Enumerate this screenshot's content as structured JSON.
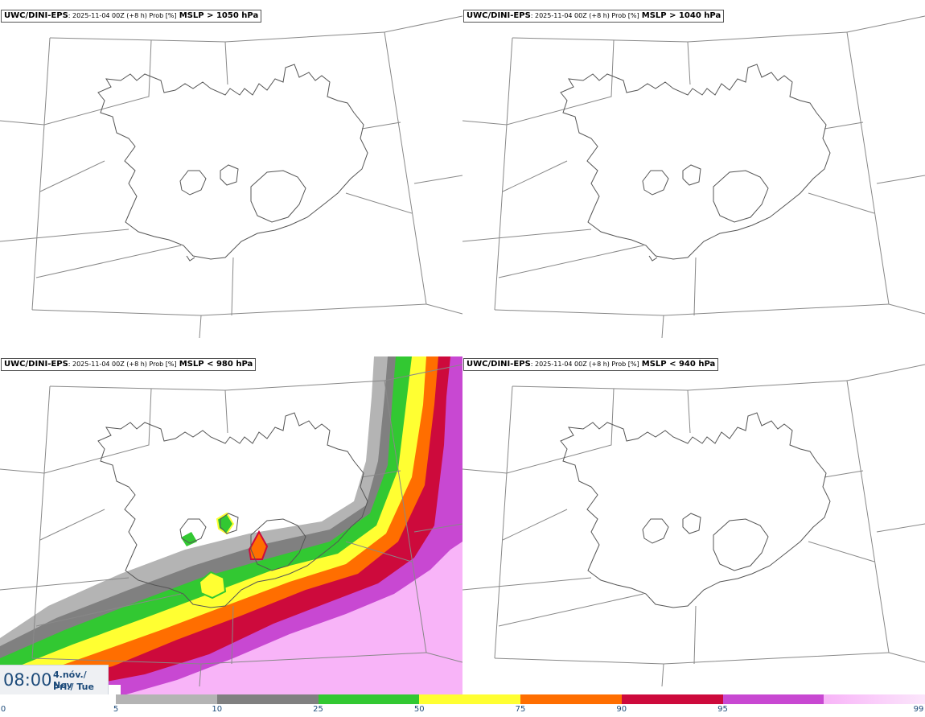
{
  "panels": [
    {
      "model": "UWC/DINI-EPS",
      "meta": ": 2025-11-04 00Z (+8 h) Prob [%]",
      "threshold": "MSLP > 1050 hPa"
    },
    {
      "model": "UWC/DINI-EPS",
      "meta": ": 2025-11-04 00Z (+8 h) Prob [%]",
      "threshold": "MSLP > 1040 hPa"
    },
    {
      "model": "UWC/DINI-EPS",
      "meta": ": 2025-11-04 00Z (+8 h) Prob [%]",
      "threshold": "MSLP < 980 hPa"
    },
    {
      "model": "UWC/DINI-EPS",
      "meta": ": 2025-11-04 00Z (+8 h) Prob [%]",
      "threshold": "MSLP < 940 hPa"
    }
  ],
  "time": {
    "clock": "08:00",
    "date_line1": "4.nóv./ Nov",
    "date_line2": "Þri./ Tue"
  },
  "colorbar": {
    "ticks": [
      "0",
      "5",
      "10",
      "25",
      "50",
      "75",
      "90",
      "95",
      "99"
    ],
    "colors": [
      "#b4b4b4",
      "#808080",
      "#32c832",
      "#ffff32",
      "#ff6e00",
      "#cd0a3c",
      "#c848d2",
      "#f8b4f8"
    ]
  }
}
